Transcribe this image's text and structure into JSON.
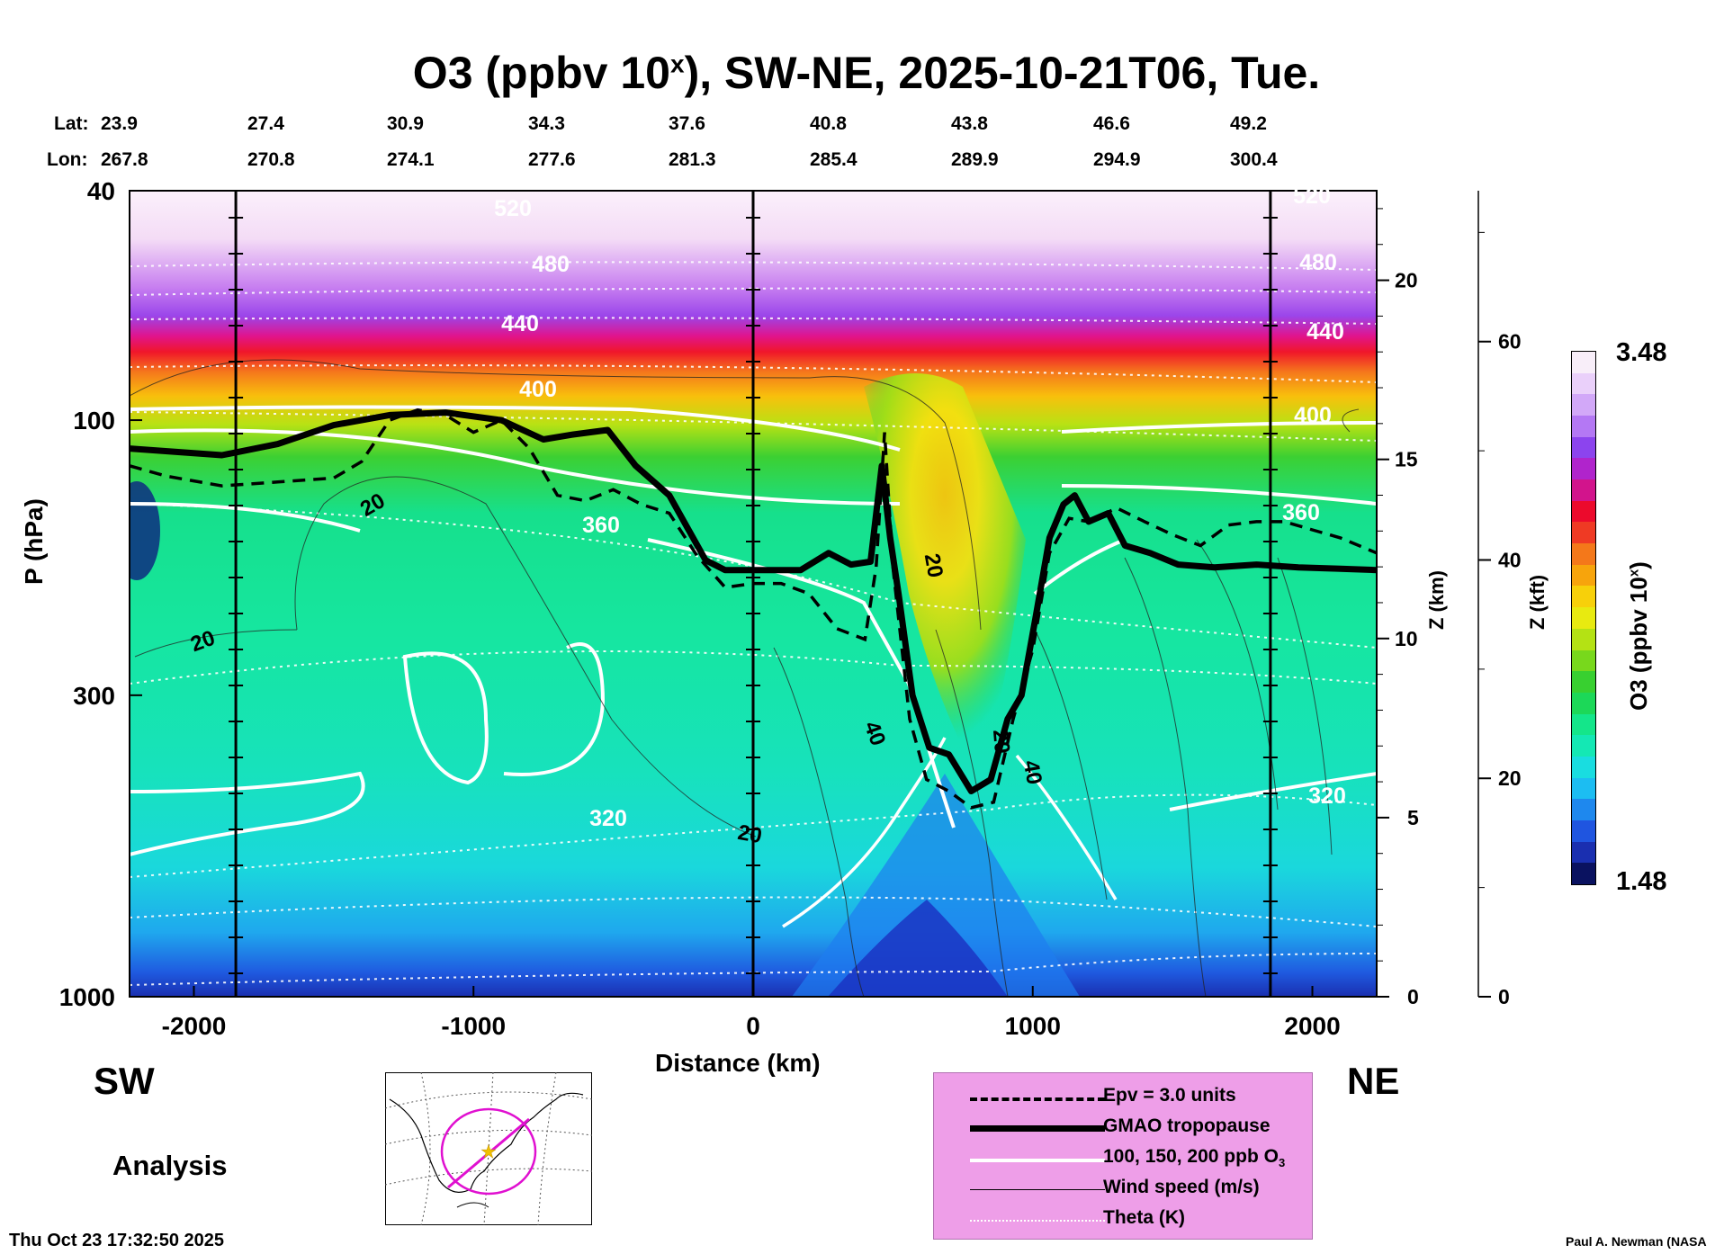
{
  "title": {
    "prefix": "O3 (ppbv 10",
    "sup": "x",
    "suffix": "), SW-NE, 2025-10-21T06, Tue."
  },
  "latlon": {
    "lat_label": "Lat:",
    "lon_label": "Lon:",
    "lat": [
      "23.9",
      "27.4",
      "30.9",
      "34.3",
      "37.6",
      "40.8",
      "43.8",
      "46.6",
      "49.2"
    ],
    "lon": [
      "267.8",
      "270.8",
      "274.1",
      "277.6",
      "281.3",
      "285.4",
      "289.9",
      "294.9",
      "300.4"
    ]
  },
  "direction": {
    "left": "SW",
    "right": "NE"
  },
  "analysis_label": "Analysis",
  "timestamp": "Thu Oct 23 17:32:50 2025",
  "credit": "Paul A. Newman (NASA",
  "legend": {
    "items": [
      {
        "label": "Epv = 3.0 units",
        "style": "dashed"
      },
      {
        "label": "GMAO tropopause",
        "style": "thick"
      },
      {
        "label": "100, 150, 200 ppb O",
        "sub": "3",
        "style": "white"
      },
      {
        "label": "Wind speed (m/s)",
        "style": "thin"
      },
      {
        "label": "Theta (K)",
        "style": "dotted"
      }
    ]
  },
  "colorbar": {
    "max_label": "3.48",
    "min_label": "1.48",
    "title_prefix": "O3 (ppbv 10",
    "title_sup": "x",
    "title_suffix": ")",
    "colors": [
      "#0a1260",
      "#1a2fb0",
      "#1f55e0",
      "#1e88ee",
      "#1cbdf2",
      "#19dde0",
      "#14e8b4",
      "#14e68a",
      "#1cd858",
      "#38d030",
      "#78d81c",
      "#b4e214",
      "#e8ea10",
      "#f7d00a",
      "#f7a40c",
      "#f4781a",
      "#ef3a24",
      "#ec0a2c",
      "#d2148c",
      "#b024cc",
      "#8c44ee",
      "#b478f4",
      "#d2a8f8",
      "#ead0fa",
      "#f8eef9"
    ]
  },
  "chart_data": {
    "type": "heatmap",
    "title": "O3 (ppbv 10^x), SW-NE, 2025-10-21T06, Tue.",
    "xlabel": "Distance (km)",
    "ylabel": "P (hPa)",
    "ylabel_right_1": "Z (km)",
    "ylabel_right_2": "Z (kft)",
    "xlim": [
      -2230,
      2230
    ],
    "ylim_hPa": [
      1000,
      40
    ],
    "x_ticks": [
      -2000,
      -1000,
      0,
      1000,
      2000
    ],
    "x_tick_labels": [
      "-2000",
      "-1000",
      "0",
      "1000",
      "2000"
    ],
    "p_ticks": [
      40,
      100,
      300,
      1000
    ],
    "p_tick_labels": [
      "40",
      "100",
      "300",
      "1000"
    ],
    "z_km_ticks": [
      0,
      5,
      10,
      15,
      20
    ],
    "z_kft_ticks": [
      0,
      20,
      40,
      60
    ],
    "vertical_markers_km": [
      -1850,
      0,
      1850
    ],
    "colorbar_range_log_ppbv": [
      1.48,
      3.48
    ],
    "tropopause_hPa": {
      "x": [
        -2230,
        -1900,
        -1700,
        -1500,
        -1300,
        -1100,
        -900,
        -750,
        -650,
        -520,
        -420,
        -300,
        -170,
        -100,
        0,
        170,
        270,
        350,
        420,
        460,
        490,
        520,
        570,
        630,
        700,
        780,
        850,
        910,
        960,
        1010,
        1060,
        1110,
        1150,
        1200,
        1270,
        1330,
        1420,
        1520,
        1650,
        1800,
        1950,
        2100,
        2230
      ],
      "p": [
        112,
        115,
        110,
        102,
        98,
        97,
        100,
        108,
        106,
        104,
        120,
        135,
        175,
        182,
        182,
        182,
        170,
        178,
        176,
        120,
        160,
        200,
        300,
        370,
        380,
        440,
        420,
        330,
        300,
        220,
        160,
        140,
        135,
        150,
        145,
        165,
        170,
        178,
        180,
        178,
        180,
        181,
        182
      ]
    },
    "epv3_hPa": {
      "x": [
        -2230,
        -2100,
        -1900,
        -1700,
        -1500,
        -1400,
        -1300,
        -1200,
        -1100,
        -1000,
        -900,
        -800,
        -700,
        -600,
        -500,
        -400,
        -300,
        -200,
        -100,
        0,
        100,
        200,
        300,
        400,
        440,
        470,
        500,
        560,
        620,
        700,
        780,
        860,
        930,
        1000,
        1060,
        1130,
        1200,
        1300,
        1400,
        1500,
        1600,
        1700,
        1800,
        1900,
        2000,
        2100,
        2230
      ],
      "p": [
        120,
        125,
        130,
        128,
        126,
        118,
        100,
        96,
        98,
        105,
        100,
        112,
        135,
        138,
        132,
        140,
        145,
        172,
        195,
        192,
        192,
        200,
        230,
        240,
        180,
        105,
        180,
        330,
        420,
        440,
        470,
        460,
        330,
        250,
        170,
        148,
        150,
        142,
        150,
        158,
        165,
        152,
        150,
        150,
        155,
        160,
        170
      ]
    },
    "theta_levels_K": [
      320,
      360,
      400,
      440,
      480,
      520
    ],
    "o3_contours_ppb": [
      100,
      150,
      200
    ],
    "wind_labels_ms": [
      20,
      20,
      20,
      20,
      40,
      20,
      40
    ],
    "annotations": [
      "520",
      "480",
      "440",
      "400",
      "360",
      "320",
      "20",
      "40"
    ]
  }
}
